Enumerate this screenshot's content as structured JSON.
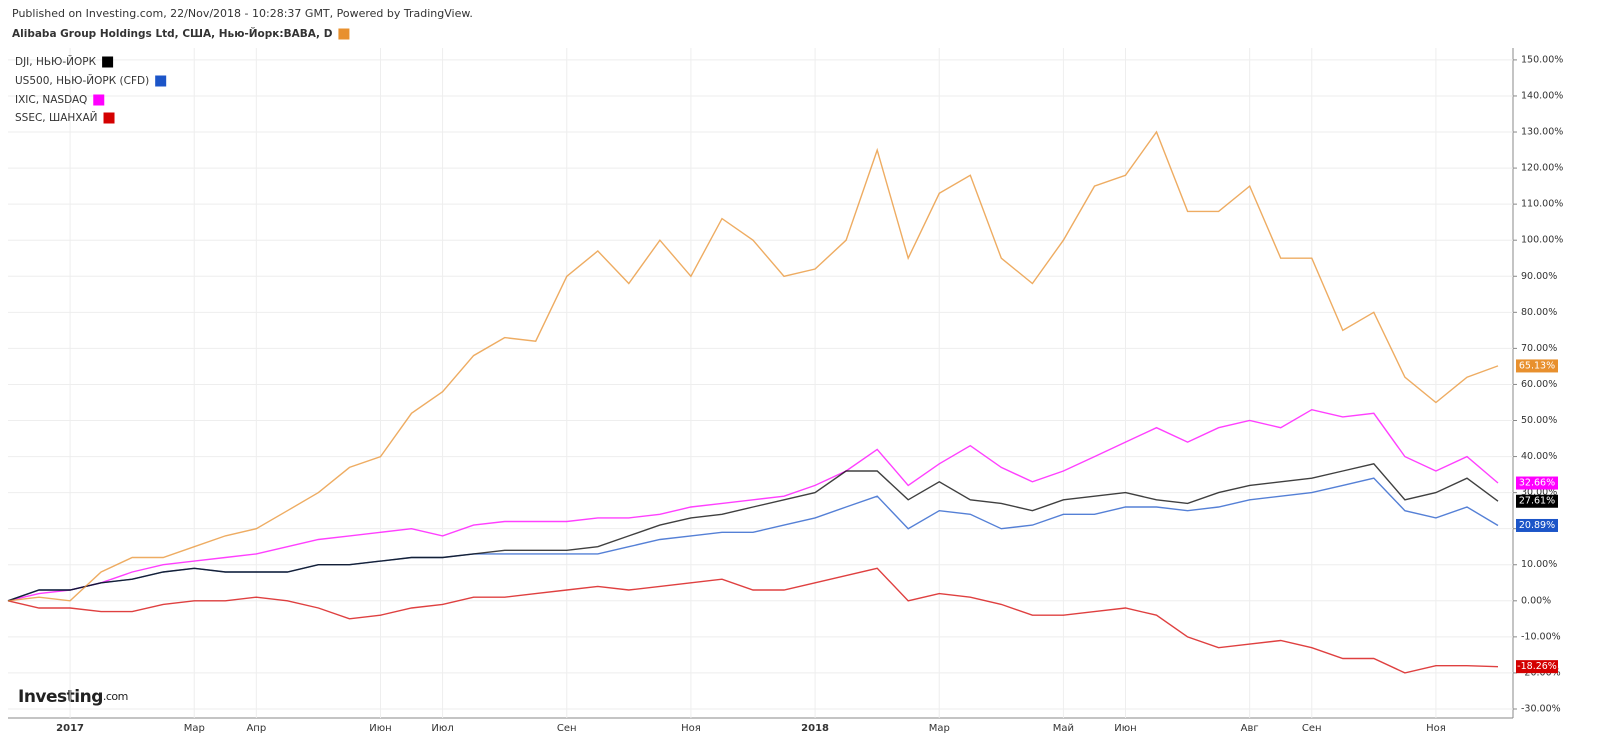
{
  "header": "Published on Investing.com, 22/Nov/2018 - 10:28:37 GMT, Powered by TradingView.",
  "watermark": [
    "Investing",
    ".com"
  ],
  "chart_data": {
    "type": "line",
    "grid": true,
    "categories": [
      null,
      null,
      "2017",
      null,
      null,
      null,
      "Мар",
      null,
      "Апр",
      null,
      null,
      null,
      "Июн",
      null,
      "Июл",
      null,
      null,
      null,
      "Сен",
      null,
      null,
      null,
      "Ноя",
      null,
      null,
      null,
      "2018",
      null,
      null,
      null,
      "Мар",
      null,
      null,
      null,
      "Май",
      null,
      "Июн",
      null,
      null,
      null,
      "Авг",
      null,
      "Сен",
      null,
      null,
      null,
      "Ноя",
      null,
      null
    ],
    "ylim": [
      -32.5,
      153.3
    ],
    "yticks": [
      {
        "value": -30,
        "label": "-30.00%"
      },
      {
        "value": -20,
        "label": "-20.00%"
      },
      {
        "value": -10,
        "label": "-10.00%"
      },
      {
        "value": 0,
        "label": "0.00%"
      },
      {
        "value": 10,
        "label": "10.00%"
      },
      {
        "value": 20,
        "label": "20.00%"
      },
      {
        "value": 30,
        "label": "30.00%"
      },
      {
        "value": 40,
        "label": "40.00%"
      },
      {
        "value": 50,
        "label": "50.00%"
      },
      {
        "value": 60,
        "label": "60.00%"
      },
      {
        "value": 70,
        "label": "70.00%"
      },
      {
        "value": 80,
        "label": "80.00%"
      },
      {
        "value": 90,
        "label": "90.00%"
      },
      {
        "value": 100,
        "label": "100.00%"
      },
      {
        "value": 110,
        "label": "110.00%"
      },
      {
        "value": 120,
        "label": "120.00%"
      },
      {
        "value": 130,
        "label": "130.00%"
      },
      {
        "value": 140,
        "label": "140.00%"
      },
      {
        "value": 150,
        "label": "150.00%"
      }
    ],
    "series": [
      {
        "name": "Alibaba Group Holdings Ltd, США, Нью-Йорк:BABA, D",
        "color": "#e8902e",
        "values": [
          0,
          1,
          0,
          8,
          12,
          12,
          15,
          18,
          20,
          25,
          30,
          37,
          40,
          52,
          58,
          68,
          73,
          72,
          90,
          97,
          88,
          100,
          90,
          106,
          100,
          90,
          92,
          100,
          125,
          95,
          113,
          118,
          95,
          88,
          100,
          115,
          118,
          130,
          108,
          108,
          115,
          95,
          95,
          75,
          80,
          62,
          55,
          62,
          65.13
        ],
        "value_labels": [
          null,
          null,
          null,
          null,
          null,
          null,
          null,
          null,
          null,
          null,
          null,
          null,
          null,
          null,
          null,
          null,
          null,
          null,
          null,
          null,
          null,
          null,
          null,
          null,
          null,
          null,
          null,
          null,
          null,
          null,
          null,
          null,
          null,
          null,
          null,
          null,
          null,
          null,
          null,
          null,
          null,
          null,
          null,
          null,
          null,
          null,
          null,
          null,
          "65.13%"
        ]
      },
      {
        "name": "DJI, НЬЮ-ЙОРК",
        "color": "#000000",
        "values": [
          0,
          3,
          3,
          5,
          6,
          8,
          9,
          8,
          8,
          8,
          10,
          10,
          11,
          12,
          12,
          13,
          14,
          14,
          14,
          15,
          18,
          21,
          23,
          24,
          26,
          28,
          30,
          36,
          36,
          28,
          33,
          28,
          27,
          25,
          28,
          29,
          30,
          28,
          27,
          30,
          32,
          33,
          34,
          36,
          38,
          28,
          30,
          34,
          27.61
        ],
        "value_labels": [
          null,
          null,
          null,
          null,
          null,
          null,
          null,
          null,
          null,
          null,
          null,
          null,
          null,
          null,
          null,
          null,
          null,
          null,
          null,
          null,
          null,
          null,
          null,
          null,
          null,
          null,
          null,
          null,
          null,
          null,
          null,
          null,
          null,
          null,
          null,
          null,
          null,
          null,
          null,
          null,
          null,
          null,
          null,
          null,
          null,
          null,
          null,
          null,
          "27.61%"
        ]
      },
      {
        "name": "US500, НЬЮ-ЙОРК (CFD)",
        "color": "#1c55c8",
        "values": [
          0,
          3,
          3,
          5,
          6,
          8,
          9,
          8,
          8,
          8,
          10,
          10,
          11,
          12,
          12,
          13,
          13,
          13,
          13,
          13,
          15,
          17,
          18,
          19,
          19,
          21,
          23,
          26,
          29,
          20,
          25,
          24,
          20,
          21,
          24,
          24,
          26,
          26,
          25,
          26,
          28,
          29,
          30,
          32,
          34,
          25,
          23,
          26,
          20.89
        ],
        "value_labels": [
          null,
          null,
          null,
          null,
          null,
          null,
          null,
          null,
          null,
          null,
          null,
          null,
          null,
          null,
          null,
          null,
          null,
          null,
          null,
          null,
          null,
          null,
          null,
          null,
          null,
          null,
          null,
          null,
          null,
          null,
          null,
          null,
          null,
          null,
          null,
          null,
          null,
          null,
          null,
          null,
          null,
          null,
          null,
          null,
          null,
          null,
          null,
          null,
          "20.89%"
        ]
      },
      {
        "name": "IXIC, NASDAQ",
        "color": "#ff00ff",
        "values": [
          0,
          2,
          3,
          5,
          8,
          10,
          11,
          12,
          13,
          15,
          17,
          18,
          19,
          20,
          18,
          21,
          22,
          22,
          22,
          23,
          23,
          24,
          26,
          27,
          28,
          29,
          32,
          36,
          42,
          32,
          38,
          43,
          37,
          33,
          36,
          40,
          44,
          48,
          44,
          48,
          50,
          48,
          53,
          51,
          52,
          40,
          36,
          40,
          32.66
        ],
        "value_labels": [
          null,
          null,
          null,
          null,
          null,
          null,
          null,
          null,
          null,
          null,
          null,
          null,
          null,
          null,
          null,
          null,
          null,
          null,
          null,
          null,
          null,
          null,
          null,
          null,
          null,
          null,
          null,
          null,
          null,
          null,
          null,
          null,
          null,
          null,
          null,
          null,
          null,
          null,
          null,
          null,
          null,
          null,
          null,
          null,
          null,
          null,
          null,
          null,
          "32.66%"
        ]
      },
      {
        "name": "SSEC, ШАНХАЙ",
        "color": "#d40000",
        "values": [
          0,
          -2,
          -2,
          -3,
          -3,
          -1,
          0,
          0,
          1,
          0,
          -2,
          -5,
          -4,
          -2,
          -1,
          1,
          1,
          2,
          3,
          4,
          3,
          4,
          5,
          6,
          3,
          3,
          5,
          7,
          9,
          0,
          2,
          1,
          -1,
          -4,
          -4,
          -3,
          -2,
          -4,
          -10,
          -13,
          -12,
          -11,
          -13,
          -16,
          -16,
          -20,
          -18,
          -18,
          -18.26
        ],
        "value_labels": [
          null,
          null,
          null,
          null,
          null,
          null,
          null,
          null,
          null,
          null,
          null,
          null,
          null,
          null,
          null,
          null,
          null,
          null,
          null,
          null,
          null,
          null,
          null,
          null,
          null,
          null,
          null,
          null,
          null,
          null,
          null,
          null,
          null,
          null,
          null,
          null,
          null,
          null,
          null,
          null,
          null,
          null,
          null,
          null,
          null,
          null,
          null,
          null,
          "-18.26%"
        ]
      }
    ]
  }
}
